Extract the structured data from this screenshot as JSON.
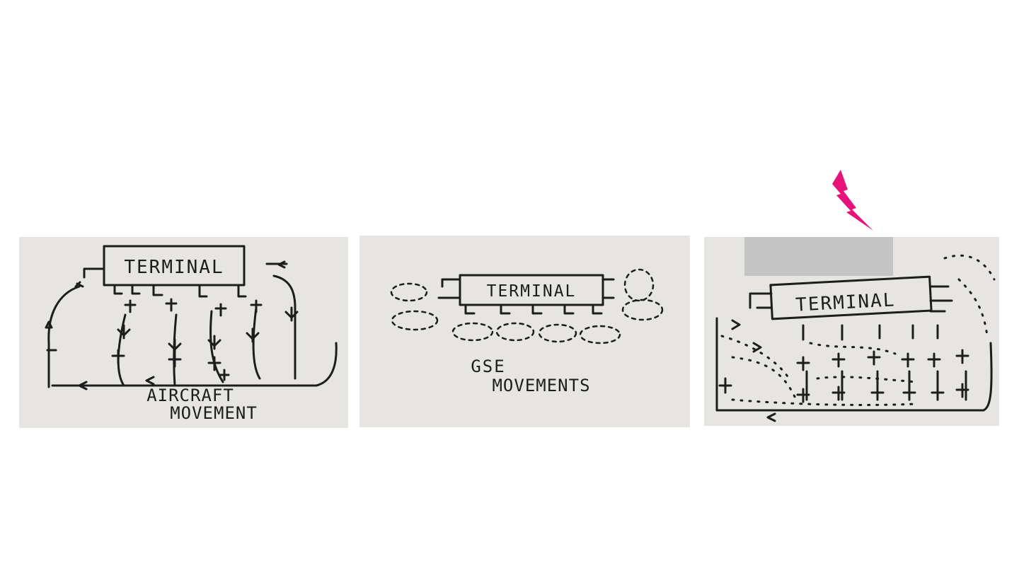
{
  "colors": {
    "card_background": "#e6e5e2",
    "ink": "#1d1d1d",
    "lightning_bolt": "#e8137a",
    "redaction_box": "#c4c4c4"
  },
  "icons": [
    "lightning-bolt-icon",
    "aircraft-icon"
  ],
  "panels": [
    {
      "terminal_label": "TERMINAL",
      "caption_line1": "AIRCRAFT",
      "caption_line2": "MOVEMENT"
    },
    {
      "terminal_label": "TERMINAL",
      "caption_line1": "GSE",
      "caption_line2": "MOVEMENTS"
    },
    {
      "terminal_label": "TERMINAL"
    }
  ]
}
